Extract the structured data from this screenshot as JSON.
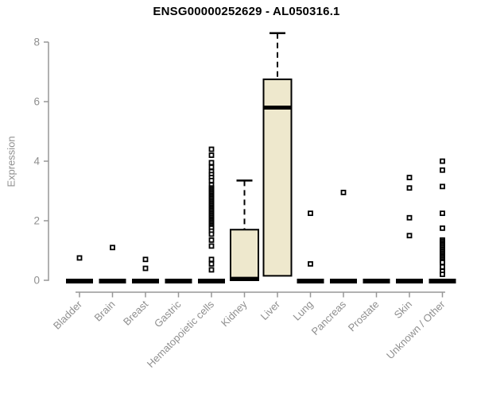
{
  "chart_data": {
    "type": "boxplot",
    "title": "ENSG00000252629 - AL050316.1",
    "ylabel": "Expression",
    "xlabel": "",
    "yticks": [
      0,
      2,
      4,
      6,
      8
    ],
    "ylim": [
      0,
      8.4
    ],
    "grid": false,
    "legend": false,
    "marker_style": "open-square",
    "categories": [
      "Bladder",
      "Brain",
      "Breast",
      "Gastric",
      "Hematopoietic cells",
      "Kidney",
      "Liver",
      "Lung",
      "Pancreas",
      "Prostate",
      "Skin",
      "Unknown / Other"
    ],
    "boxes": [
      {
        "category": "Bladder",
        "collapsed_at_zero": true,
        "outliers": [
          0.75
        ]
      },
      {
        "category": "Brain",
        "collapsed_at_zero": true,
        "outliers": [
          1.1
        ]
      },
      {
        "category": "Breast",
        "collapsed_at_zero": true,
        "outliers": [
          0.7,
          0.4
        ]
      },
      {
        "category": "Gastric",
        "collapsed_at_zero": true,
        "outliers": []
      },
      {
        "category": "Hematopoietic cells",
        "collapsed_at_zero": true,
        "outliers": [
          4.4,
          4.2,
          3.95,
          3.8,
          3.65,
          3.55,
          3.45,
          3.35,
          3.2,
          3.1,
          3.05,
          3.0,
          2.95,
          2.9,
          2.85,
          2.8,
          2.75,
          2.7,
          2.65,
          2.6,
          2.55,
          2.5,
          2.45,
          2.4,
          2.35,
          2.3,
          2.25,
          2.2,
          2.15,
          2.1,
          2.05,
          2.0,
          1.95,
          1.9,
          1.85,
          1.8,
          1.75,
          1.65,
          1.55,
          1.35,
          1.15,
          0.7,
          0.55,
          0.35
        ]
      },
      {
        "category": "Kidney",
        "collapsed_at_zero": false,
        "q1": 0,
        "median": 0.05,
        "q3": 1.7,
        "whisker_low": 0,
        "whisker_high": 3.35,
        "outliers": []
      },
      {
        "category": "Liver",
        "collapsed_at_zero": false,
        "q1": 0.15,
        "median": 5.8,
        "q3": 6.75,
        "whisker_low": 0.15,
        "whisker_high": 8.3,
        "outliers": []
      },
      {
        "category": "Lung",
        "collapsed_at_zero": true,
        "outliers": [
          2.25,
          0.55
        ]
      },
      {
        "category": "Pancreas",
        "collapsed_at_zero": true,
        "outliers": [
          2.95
        ]
      },
      {
        "category": "Prostate",
        "collapsed_at_zero": true,
        "outliers": []
      },
      {
        "category": "Skin",
        "collapsed_at_zero": true,
        "outliers": [
          3.45,
          3.1,
          2.1,
          1.5
        ]
      },
      {
        "category": "Unknown / Other",
        "collapsed_at_zero": true,
        "outliers": [
          4.0,
          3.7,
          3.15,
          2.25,
          1.75,
          1.35,
          1.3,
          1.25,
          1.2,
          1.15,
          1.1,
          1.05,
          1.0,
          0.95,
          0.9,
          0.85,
          0.8,
          0.75,
          0.7,
          0.65,
          0.6,
          0.45,
          0.3,
          0.2
        ]
      }
    ],
    "colors": {
      "box_fill": "#EEE8CD",
      "box_border": "#000000",
      "median": "#000000",
      "zero_bar": "#000000",
      "axis": "#979797",
      "tick_text": "#8F8F8F",
      "title": "#000000",
      "background": "#FFFFFF"
    }
  }
}
